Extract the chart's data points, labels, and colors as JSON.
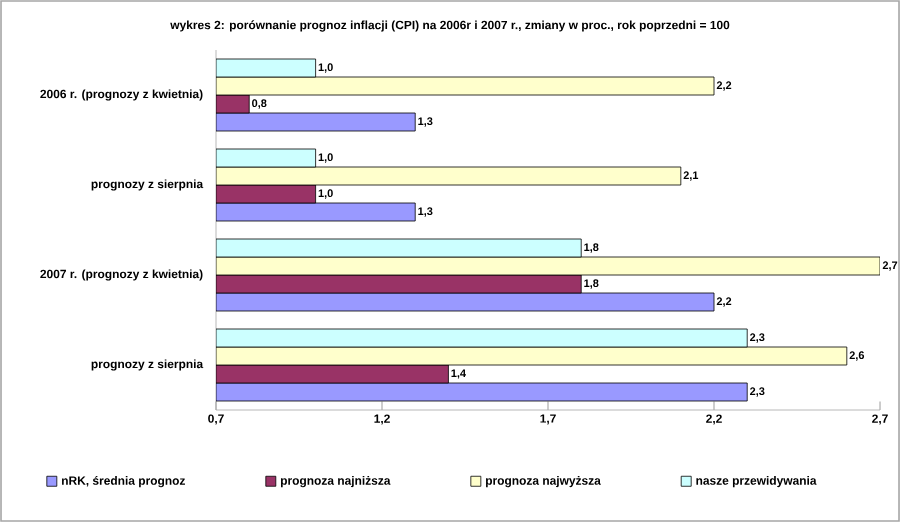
{
  "chart_data": {
    "type": "bar",
    "orientation": "horizontal",
    "title": "wykres 2: porównanie prognoz inflacji (CPI)  na 2006r i 2007 r., zmiany w proc., rok poprzedni = 100",
    "categories": [
      "2006 r.  (prognozy z kwietnia)",
      "prognozy z sierpnia",
      "2007 r. (prognozy z kwietnia)",
      "prognozy z sierpnia"
    ],
    "series": [
      {
        "name": "nRK, średnia prognoz",
        "color": "#9999ff",
        "values": [
          1.3,
          1.3,
          2.2,
          2.3
        ],
        "value_labels": [
          "1,3",
          "1,3",
          "2,2",
          "2,3"
        ]
      },
      {
        "name": "prognoza najniższa",
        "color": "#993366",
        "values": [
          0.8,
          1.0,
          1.8,
          1.4
        ],
        "value_labels": [
          "0,8",
          "1,0",
          "1,8",
          "1,4"
        ]
      },
      {
        "name": "prognoza najwyższa",
        "color": "#ffffcc",
        "values": [
          2.2,
          2.1,
          2.7,
          2.6
        ],
        "value_labels": [
          "2,2",
          "2,1",
          "2,7",
          "2,6"
        ]
      },
      {
        "name": "nasze przewidywania",
        "color": "#ccffff",
        "values": [
          1.0,
          1.0,
          1.8,
          2.3
        ],
        "value_labels": [
          "1,0",
          "1,0",
          "1,8",
          "2,3"
        ]
      }
    ],
    "xlim": [
      0.7,
      2.7
    ],
    "xticks": [
      {
        "value": 0.7,
        "label": "0,7"
      },
      {
        "value": 1.2,
        "label": "1,2"
      },
      {
        "value": 1.7,
        "label": "1,7"
      },
      {
        "value": 2.2,
        "label": "2,2"
      },
      {
        "value": 2.7,
        "label": "2,7"
      }
    ],
    "legend": "bottom"
  }
}
